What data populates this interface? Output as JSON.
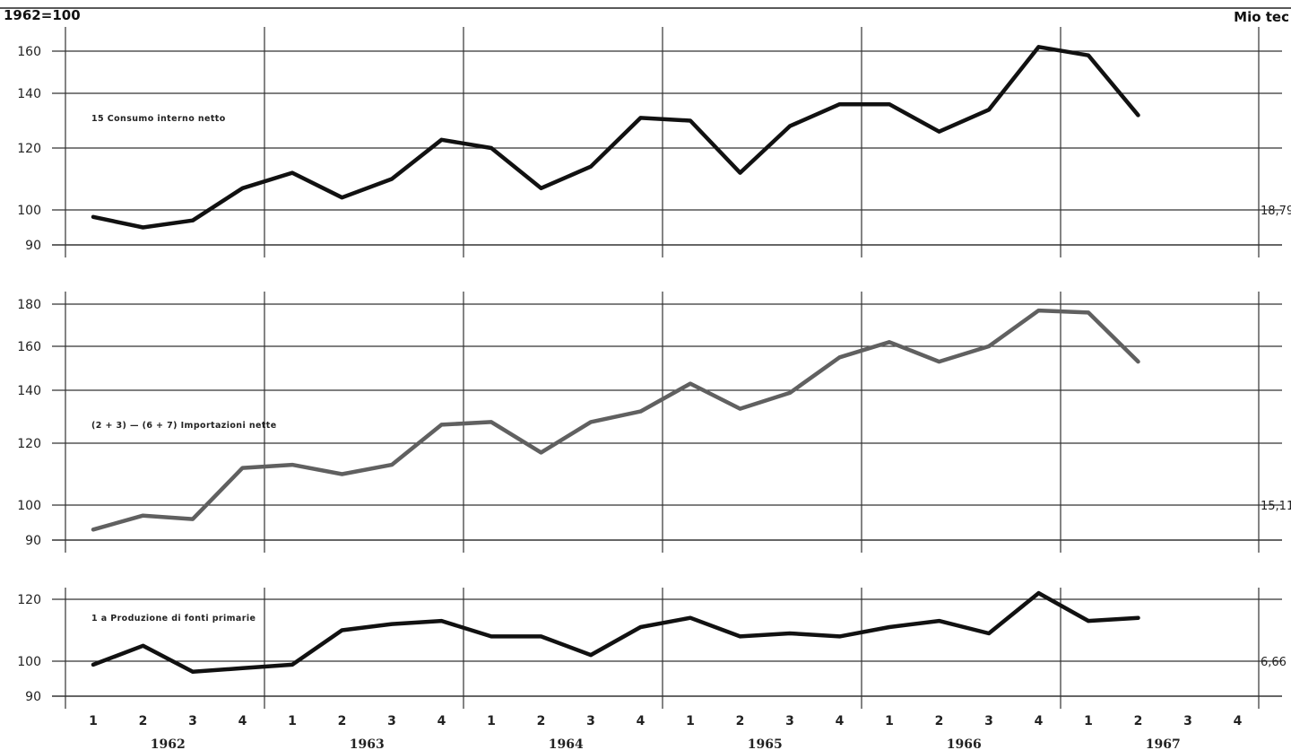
{
  "chart_data": {
    "type": "line",
    "index_label": "1962=100",
    "unit_label": "Mio tec",
    "quarters": [
      "1",
      "2",
      "3",
      "4"
    ],
    "years": [
      "1962",
      "1963",
      "1964",
      "1965",
      "1966",
      "1967"
    ],
    "panels": [
      {
        "label": "15  Consumo interno netto",
        "end_value": "18,79",
        "ylim": [
          90,
          165
        ],
        "yticks": [
          90,
          100,
          120,
          140,
          160
        ],
        "color": "#111111",
        "values": [
          98,
          95,
          97,
          107,
          112,
          104,
          110,
          123,
          120,
          107,
          114,
          131,
          130,
          112,
          128,
          136,
          136,
          126,
          134,
          162,
          158,
          132
        ]
      },
      {
        "label": "(2 + 3) — (6 + 7)  Importazioni nette",
        "end_value": "15,11",
        "ylim": [
          90,
          185
        ],
        "yticks": [
          90,
          100,
          120,
          140,
          160,
          180
        ],
        "color": "#606060",
        "values": [
          93,
          97,
          96,
          112,
          113,
          110,
          113,
          127,
          128,
          117,
          128,
          132,
          143,
          133,
          139,
          155,
          162,
          153,
          160,
          177,
          176,
          153
        ]
      },
      {
        "label": "1 a  Produzione di fonti primarie",
        "end_value": "6,66",
        "ylim": [
          90,
          122
        ],
        "yticks": [
          90,
          100,
          120
        ],
        "color": "#111111",
        "values": [
          99,
          105,
          97,
          98,
          99,
          110,
          112,
          113,
          108,
          108,
          102,
          111,
          114,
          108,
          109,
          108,
          111,
          113,
          109,
          122,
          113,
          114
        ]
      }
    ]
  }
}
